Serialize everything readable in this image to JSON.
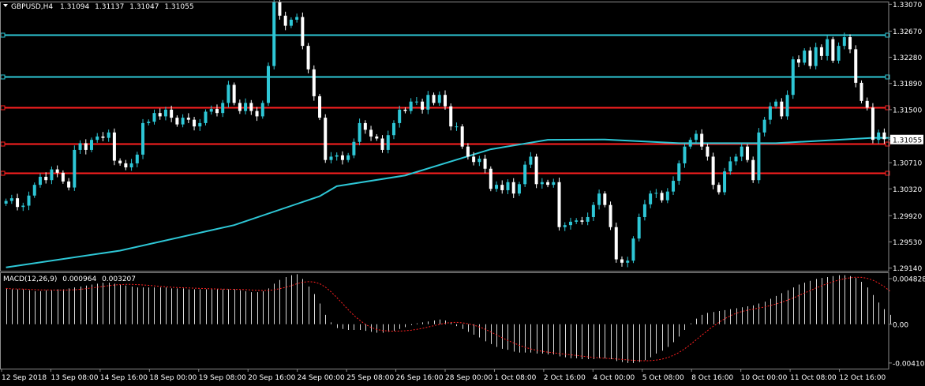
{
  "chart_data": [
    {
      "type": "candlestick",
      "title": "GBPUSD,H4",
      "ohlc_readout": [
        "1.31094",
        "1.31137",
        "1.31047",
        "1.31055"
      ],
      "current_price": 1.31055,
      "y_ticks": [
        1.3307,
        1.3267,
        1.3228,
        1.3189,
        1.315,
        1.31055,
        1.3071,
        1.3032,
        1.2992,
        1.2953,
        1.2914
      ],
      "ylim": [
        1.291,
        1.3311
      ],
      "x_labels": [
        "12 Sep 2018",
        "13 Sep 08:00",
        "14 Sep 16:00",
        "18 Sep 00:00",
        "19 Sep 08:00",
        "20 Sep 16:00",
        "24 Sep 00:00",
        "25 Sep 08:00",
        "26 Sep 16:00",
        "28 Sep 00:00",
        "1 Oct 08:00",
        "2 Oct 16:00",
        "4 Oct 00:00",
        "5 Oct 08:00",
        "8 Oct 16:00",
        "10 Oct 00:00",
        "11 Oct 08:00",
        "12 Oct 16:00"
      ],
      "horizontal_lines": [
        {
          "price": 1.3262,
          "color": "#2ec7d6"
        },
        {
          "price": 1.3199,
          "color": "#2ec7d6"
        },
        {
          "price": 1.3153,
          "color": "#ff2020"
        },
        {
          "price": 1.3099,
          "color": "#ff2020"
        },
        {
          "price": 1.3056,
          "color": "#ff2020"
        }
      ],
      "colors": {
        "bull": "#2ec7d6",
        "bear": "#ffffff",
        "moving_average": "#2ec7d6"
      },
      "closes": [
        1.3014,
        1.3018,
        1.3005,
        1.3007,
        1.3022,
        1.3038,
        1.305,
        1.3045,
        1.3061,
        1.3056,
        1.3043,
        1.3034,
        1.309,
        1.31,
        1.309,
        1.3105,
        1.311,
        1.3108,
        1.3116,
        1.3074,
        1.307,
        1.3064,
        1.307,
        1.3083,
        1.313,
        1.3132,
        1.3145,
        1.314,
        1.315,
        1.3138,
        1.3128,
        1.3138,
        1.3135,
        1.3125,
        1.313,
        1.3147,
        1.3151,
        1.3145,
        1.316,
        1.3187,
        1.316,
        1.3148,
        1.316,
        1.3148,
        1.314,
        1.316,
        1.3215,
        1.331,
        1.329,
        1.3275,
        1.3284,
        1.3288,
        1.3245,
        1.321,
        1.317,
        1.3138,
        1.3075,
        1.308,
        1.3082,
        1.3075,
        1.3082,
        1.3102,
        1.313,
        1.312,
        1.311,
        1.3107,
        1.309,
        1.3112,
        1.313,
        1.315,
        1.3148,
        1.3162,
        1.3162,
        1.315,
        1.3172,
        1.316,
        1.3172,
        1.3155,
        1.3125,
        1.3125,
        1.3095,
        1.308,
        1.3072,
        1.3077,
        1.3062,
        1.3032,
        1.3038,
        1.303,
        1.3042,
        1.3025,
        1.3039,
        1.3068,
        1.308,
        1.3039,
        1.3042,
        1.3038,
        1.3042,
        1.2975,
        1.2978,
        1.2983,
        1.2985,
        1.2983,
        1.299,
        1.3008,
        1.3025,
        1.3008,
        1.2975,
        1.2927,
        1.2922,
        1.2925,
        1.2958,
        1.299,
        1.3009,
        1.3025,
        1.3026,
        1.3015,
        1.3028,
        1.3044,
        1.307,
        1.3095,
        1.3105,
        1.3114,
        1.3095,
        1.308,
        1.3038,
        1.3027,
        1.3058,
        1.3073,
        1.308,
        1.3095,
        1.3075,
        1.3045,
        1.3116,
        1.3135,
        1.3155,
        1.3162,
        1.314,
        1.3172,
        1.3225,
        1.322,
        1.3238,
        1.3215,
        1.3243,
        1.323,
        1.3255,
        1.3223,
        1.3245,
        1.3258,
        1.324,
        1.319,
        1.3163,
        1.3153,
        1.3105,
        1.3116,
        1.3106
      ],
      "moving_average": {
        "start": 1.2915,
        "end": 1.3108,
        "points": [
          [
            0,
            1.2915
          ],
          [
            20,
            1.294
          ],
          [
            40,
            1.2978
          ],
          [
            55,
            1.3021
          ],
          [
            58,
            1.3036
          ],
          [
            70,
            1.3052
          ],
          [
            85,
            1.3091
          ],
          [
            95,
            1.3105
          ],
          [
            105,
            1.31055
          ],
          [
            118,
            1.31
          ],
          [
            135,
            1.31
          ],
          [
            152,
            1.3108
          ],
          [
            155,
            1.3108
          ]
        ]
      }
    },
    {
      "type": "macd",
      "title": "MACD(12,26,9)",
      "value_main": "0.000964",
      "value_signal": "0.003207",
      "y_ticks": [
        0.004828,
        0.0,
        -0.004104
      ],
      "y_tick_labels": [
        "0.004828",
        "0.00",
        "-0.004104"
      ],
      "ylim": [
        -0.0047,
        0.0055
      ],
      "histogram": [
        0.0038,
        0.0037,
        0.0037,
        0.0037,
        0.0036,
        0.0035,
        0.0035,
        0.0036,
        0.0036,
        0.0037,
        0.0037,
        0.0038,
        0.0039,
        0.004,
        0.0041,
        0.0042,
        0.0043,
        0.0044,
        0.0044,
        0.0043,
        0.0042,
        0.0041,
        0.004,
        0.0039,
        0.0039,
        0.0039,
        0.0039,
        0.0039,
        0.0039,
        0.0038,
        0.0038,
        0.0038,
        0.0037,
        0.0037,
        0.0037,
        0.0037,
        0.0037,
        0.0037,
        0.0037,
        0.0037,
        0.0037,
        0.0036,
        0.0035,
        0.0034,
        0.0034,
        0.0035,
        0.0038,
        0.0043,
        0.0047,
        0.005,
        0.0052,
        0.0053,
        0.0048,
        0.004,
        0.0032,
        0.0022,
        0.001,
        0.0002,
        -0.0004,
        -0.0005,
        -0.0006,
        -0.0006,
        -0.0006,
        -0.0007,
        -0.0008,
        -0.0009,
        -0.0009,
        -0.0008,
        -0.0007,
        -0.0005,
        -0.0003,
        -0.0001,
        0.0001,
        0.0002,
        0.0003,
        0.0004,
        0.0005,
        0.0004,
        0.0002,
        -0.0002,
        -0.0005,
        -0.0008,
        -0.0011,
        -0.0014,
        -0.0018,
        -0.0021,
        -0.0024,
        -0.0026,
        -0.0027,
        -0.0029,
        -0.003,
        -0.003,
        -0.003,
        -0.0031,
        -0.0031,
        -0.0032,
        -0.0032,
        -0.0034,
        -0.0035,
        -0.0036,
        -0.0036,
        -0.0037,
        -0.0037,
        -0.0037,
        -0.0036,
        -0.0036,
        -0.0037,
        -0.0039,
        -0.004,
        -0.0041,
        -0.0041,
        -0.004,
        -0.0038,
        -0.0035,
        -0.0031,
        -0.0028,
        -0.0024,
        -0.0019,
        -0.0013,
        -0.0006,
        0.0001,
        0.0006,
        0.001,
        0.0012,
        0.0013,
        0.0014,
        0.0015,
        0.0016,
        0.0017,
        0.0018,
        0.0019,
        0.002,
        0.0022,
        0.0024,
        0.0027,
        0.003,
        0.0033,
        0.0036,
        0.0039,
        0.0042,
        0.0044,
        0.0046,
        0.0048,
        0.0049,
        0.005,
        0.0051,
        0.0052,
        0.0052,
        0.0051,
        0.0049,
        0.0045,
        0.0039,
        0.0031,
        0.0023,
        0.0016,
        0.001
      ]
    }
  ]
}
